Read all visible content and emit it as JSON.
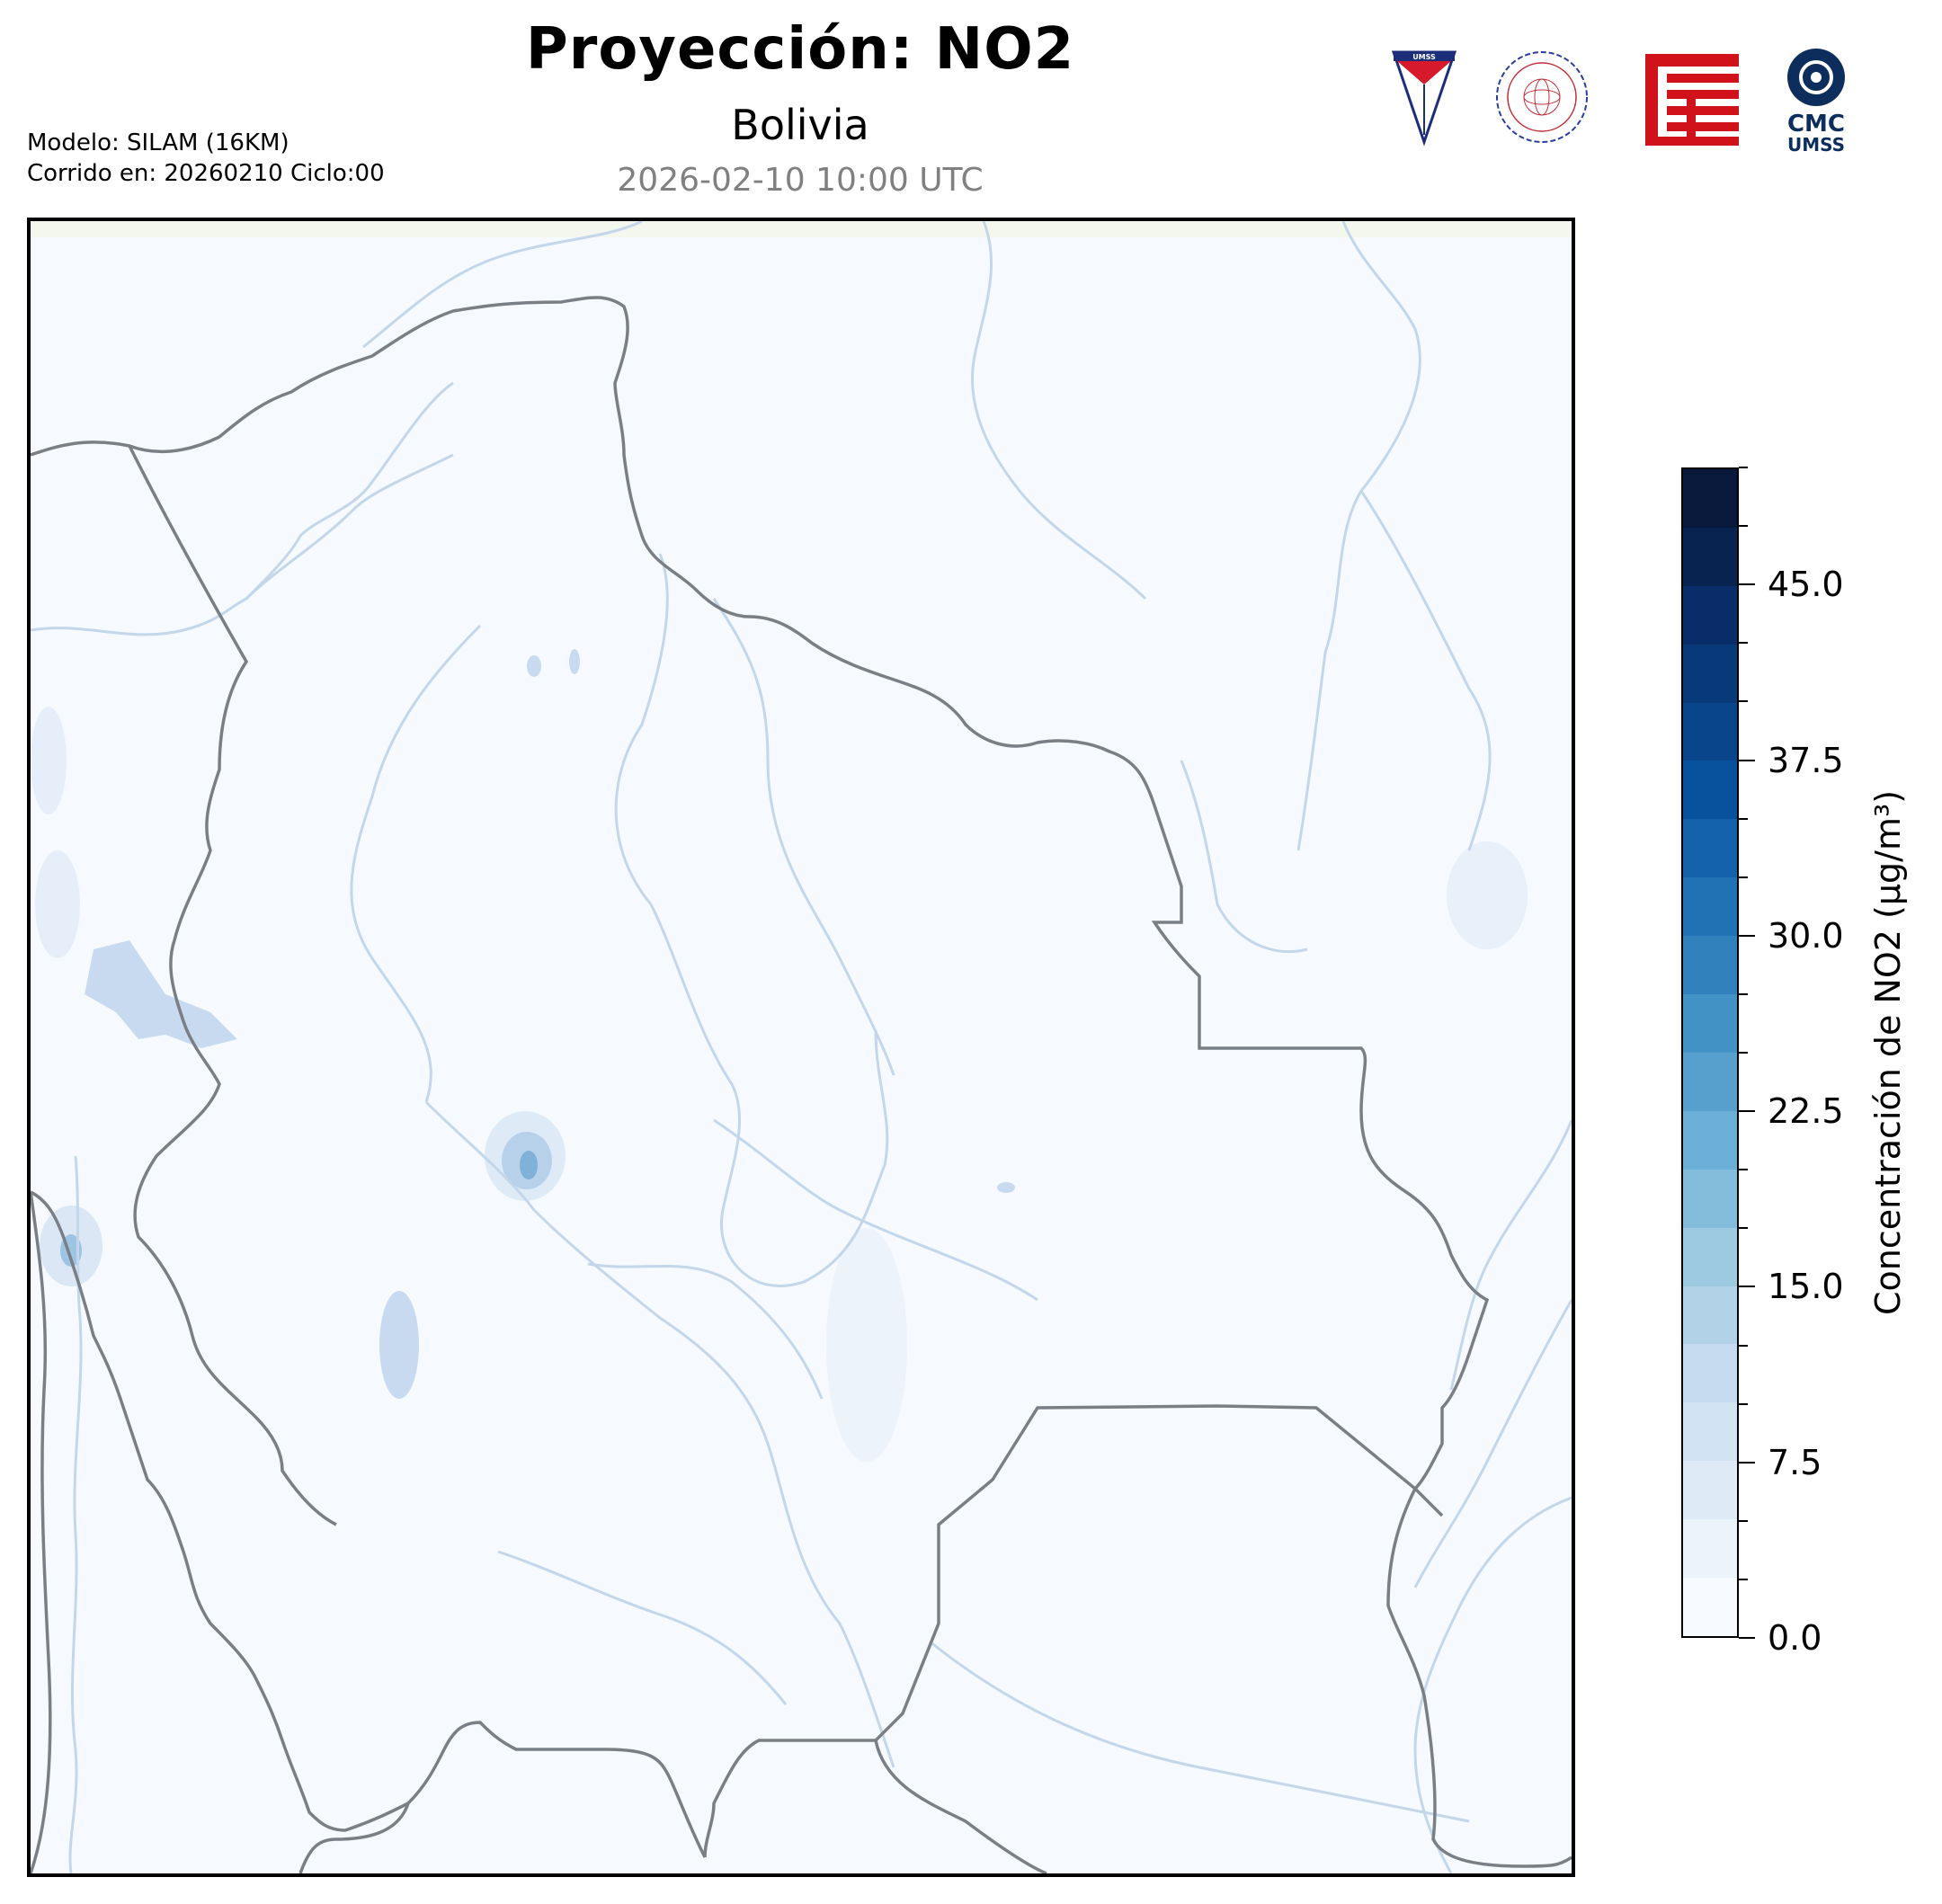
{
  "title": "Proyección: NO2",
  "subtitle": "Bolivia",
  "timestamp": "2026-02-10 10:00 UTC",
  "meta": {
    "model": "Modelo: SILAM (16KM)",
    "run": "Corrido en: 20260210 Ciclo:00"
  },
  "logos": {
    "umss_badge": "UMSS",
    "physics_seal": "DEPARTAMENTO DE FISICA",
    "cmc_line1": "CMC",
    "cmc_line2": "UMSS"
  },
  "colorbar": {
    "label": "Concentración de NO2 (μg/m³)",
    "unit": "μg/m³",
    "min": 0,
    "max": 50,
    "levels": 20,
    "ticks": [
      "0.0",
      "7.5",
      "15.0",
      "22.5",
      "30.0",
      "37.5",
      "45.0"
    ],
    "tick_values": [
      0,
      7.5,
      15,
      22.5,
      30,
      37.5,
      45
    ],
    "colors": [
      "#f7fbff",
      "#ebf3fb",
      "#deebf7",
      "#d2e3f3",
      "#c6dbef",
      "#b2d2e8",
      "#9ecae1",
      "#84bcdb",
      "#6baed6",
      "#57a0ce",
      "#4292c6",
      "#3181bd",
      "#2171b5",
      "#1462a9",
      "#08519c",
      "#08458a",
      "#083979",
      "#082d68",
      "#08234f",
      "#08193c"
    ]
  },
  "map": {
    "region": "Bolivia",
    "pollutant": "NO2",
    "background_color": "#f6faff",
    "border_color": "#7a7f85",
    "river_color": "#c3d6ea",
    "hotspot_color": "#3a84c2"
  }
}
